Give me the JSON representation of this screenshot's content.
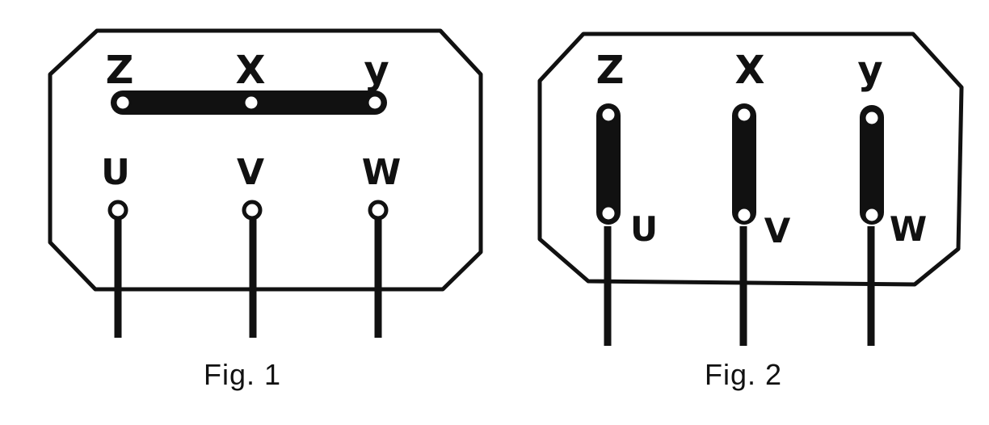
{
  "figures": [
    {
      "caption": "Fig. 1",
      "top_labels": [
        "Z",
        "X",
        "y"
      ],
      "bottom_labels": [
        "U",
        "V",
        "W"
      ]
    },
    {
      "caption": "Fig. 2",
      "top_labels": [
        "Z",
        "X",
        "y"
      ],
      "bottom_labels": [
        "U",
        "V",
        "W"
      ]
    }
  ],
  "colors": {
    "ink": "#111111",
    "paper": "#ffffff"
  }
}
